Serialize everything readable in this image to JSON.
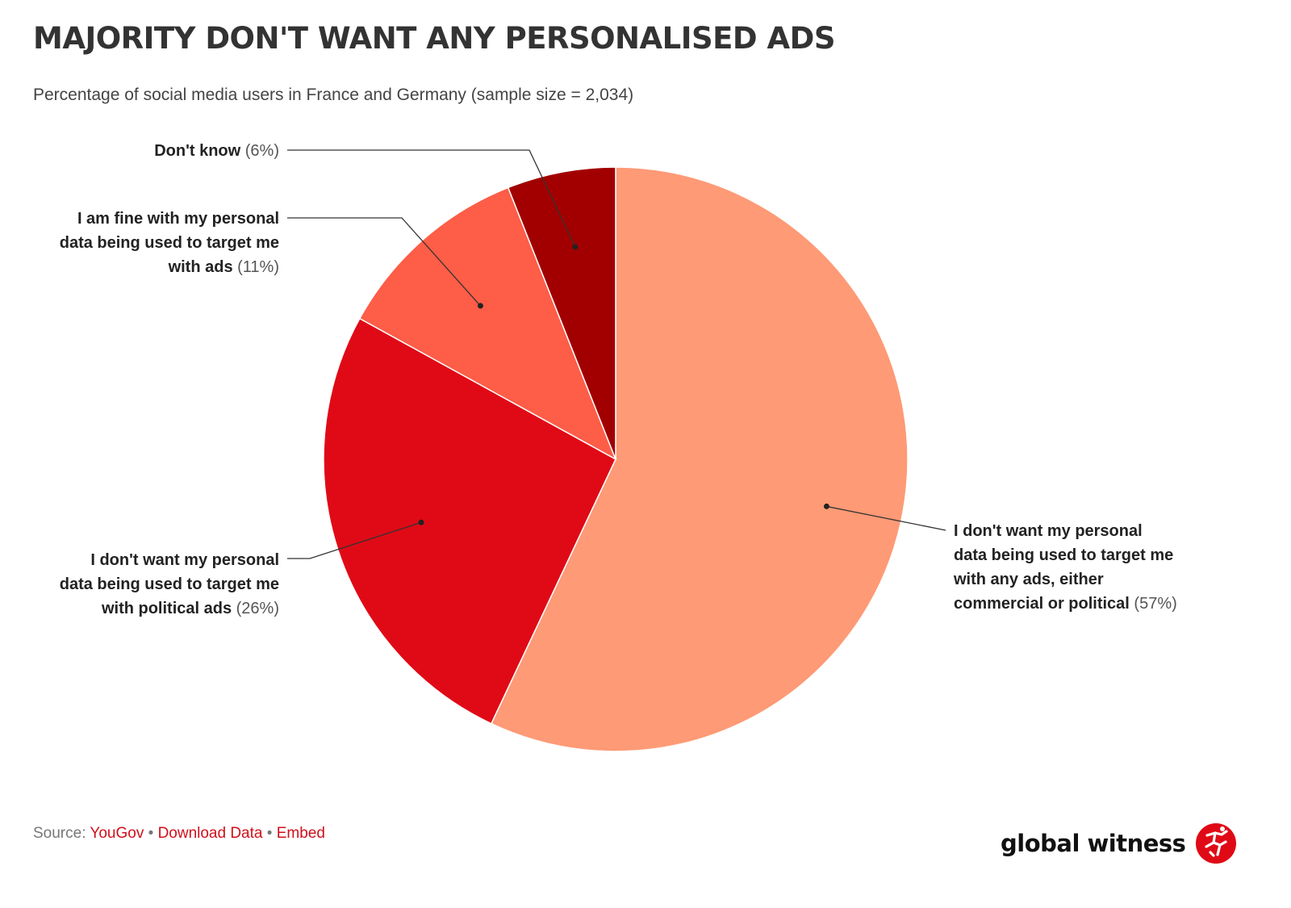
{
  "header": {
    "title": "MAJORITY DON'T WANT ANY PERSONALISED ADS",
    "subtitle": "Percentage of social media users in France and Germany (sample size = 2,034)"
  },
  "chart_data": {
    "type": "pie",
    "title": "MAJORITY DON'T WANT ANY PERSONALISED ADS",
    "subtitle": "Percentage of social media users in France and Germany (sample size = 2,034)",
    "unit": "%",
    "slices": [
      {
        "name_lines": [
          "I don't want my personal",
          "data being used to target me",
          "with any ads, either",
          "commercial or political"
        ],
        "value": 57,
        "value_label": "(57%)",
        "color": "#fe9a76"
      },
      {
        "name_lines": [
          "I don't want my personal",
          "data being used to target me",
          "with political ads"
        ],
        "value": 26,
        "value_label": "(26%)",
        "color": "#e00a16"
      },
      {
        "name_lines": [
          "I am fine with my personal",
          "data being used to target me",
          "with ads"
        ],
        "value": 11,
        "value_label": "(11%)",
        "color": "#fe5d47"
      },
      {
        "name_lines": [
          "Don't know"
        ],
        "value": 6,
        "value_label": "(6%)",
        "color": "#a20000"
      }
    ]
  },
  "footer": {
    "source_label": "Source:",
    "source_link": "YouGov",
    "separator": "•",
    "download_link": "Download Data",
    "embed_link": "Embed"
  },
  "brand": {
    "name": "global witness",
    "logo_icon": "global-witness-logo-icon",
    "logo_color": "#e00a16"
  }
}
